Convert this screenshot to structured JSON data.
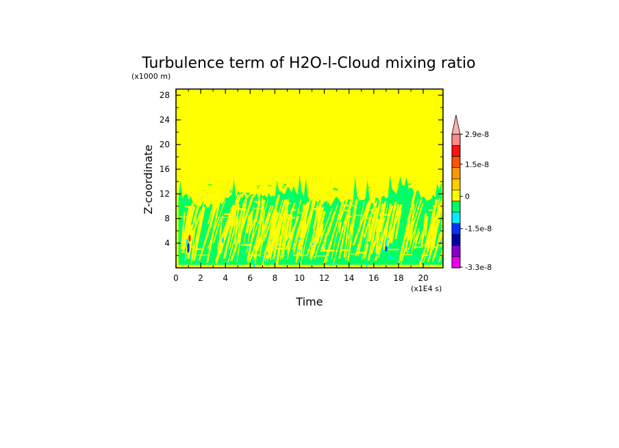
{
  "chart_data": {
    "type": "heatmap",
    "title": "Turbulence term of H2O-l-Cloud mixing ratio",
    "xlabel": "Time",
    "ylabel": "Z-coordinate",
    "x_unit": "(x1E4 s)",
    "y_unit": "(x1000 m)",
    "xlim": [
      0,
      21.6
    ],
    "ylim": [
      0,
      29
    ],
    "x_ticks": [
      "0",
      "2",
      "4",
      "6",
      "8",
      "10",
      "12",
      "14",
      "16",
      "18",
      "20"
    ],
    "y_ticks": [
      "4",
      "8",
      "12",
      "16",
      "20",
      "24",
      "28"
    ],
    "background_level_color": "#ffff00",
    "cloud_layer": {
      "z_bottom": 0.5,
      "z_top_typical": 11.5,
      "z_top_max": 15,
      "dominant_color": "#00ff66",
      "secondary_color": "#ffff00",
      "minor_color": "#00eeff"
    },
    "colorbar": {
      "colors": [
        "#ee00ee",
        "#8800cc",
        "#0000aa",
        "#0033ff",
        "#00eeff",
        "#00ff66",
        "#ffff00",
        "#ffcc00",
        "#ff9900",
        "#ff5500",
        "#ff1111",
        "#ff8888",
        "#ffb0b0"
      ],
      "labels": [
        "-3.3e-8",
        "-1.5e-8",
        "0",
        "1.5e-8",
        "2.9e-8"
      ],
      "label_values": [
        -3.3e-08,
        -1.5e-08,
        0,
        1.5e-08,
        2.9e-08
      ],
      "extend": "max"
    }
  }
}
